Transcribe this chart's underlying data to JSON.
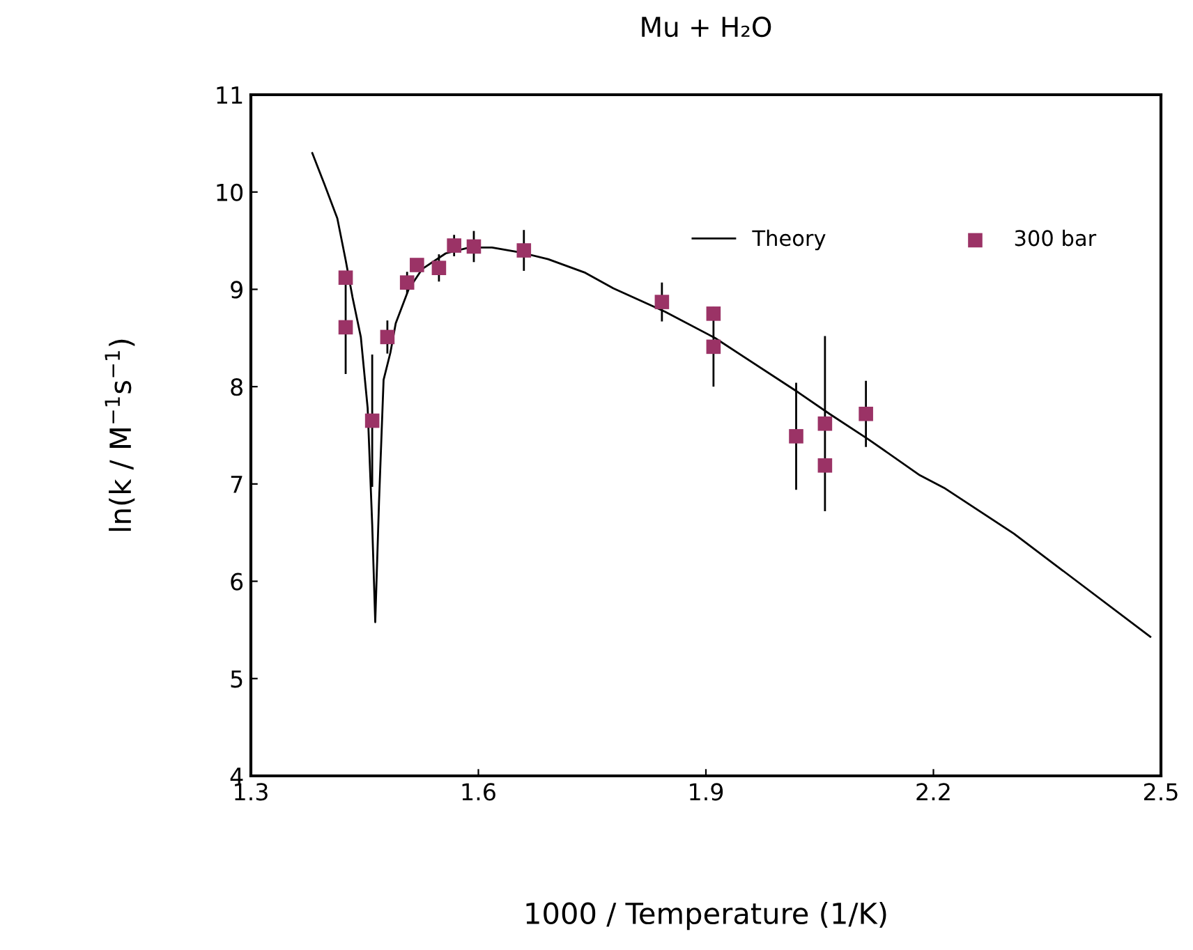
{
  "chart_data": {
    "type": "scatter",
    "title": "Mu + H₂O",
    "xlabel": "1000 / Temperature (1/K)",
    "ylabel": "ln(k / M$^{−1}$s$^{−1}$)",
    "xlim": [
      1.3,
      2.5
    ],
    "xticks": [
      1.3,
      1.6,
      1.9,
      2.2,
      2.5
    ],
    "ylim": [
      4,
      11
    ],
    "yticks": [
      4,
      5,
      6,
      7,
      8,
      9,
      10,
      11
    ],
    "grid": false,
    "legend": "top right",
    "series": [
      {
        "name": "Theory",
        "type": "line",
        "color": "#000000",
        "marker": "none",
        "line_style": "solid",
        "x": [
          1.381,
          1.397,
          1.414,
          1.425,
          1.434,
          1.445,
          1.454,
          1.46,
          1.464,
          1.469,
          1.475,
          1.484,
          1.491,
          1.508,
          1.526,
          1.557,
          1.588,
          1.618,
          1.655,
          1.692,
          1.741,
          1.778,
          1.846,
          1.912,
          2.022,
          2.063,
          2.114,
          2.182,
          2.214,
          2.306,
          2.486
        ],
        "values": [
          10.4,
          10.08,
          9.73,
          9.3,
          8.92,
          8.51,
          7.78,
          6.58,
          5.58,
          6.82,
          8.07,
          8.35,
          8.65,
          9.0,
          9.21,
          9.37,
          9.43,
          9.43,
          9.38,
          9.31,
          9.17,
          9.01,
          8.77,
          8.5,
          7.94,
          7.72,
          7.46,
          7.09,
          6.96,
          6.49,
          5.43
        ]
      },
      {
        "name": "300 bar",
        "color": "#9b3366",
        "marker": "square",
        "x": [
          1.425,
          1.425,
          1.46,
          1.48,
          1.506,
          1.519,
          1.548,
          1.568,
          1.594,
          1.66,
          1.842,
          1.91,
          1.91,
          2.019,
          2.057,
          2.057,
          2.111
        ],
        "values": [
          9.12,
          8.61,
          7.65,
          8.51,
          9.07,
          9.25,
          9.22,
          9.45,
          9.44,
          9.4,
          8.87,
          8.75,
          8.41,
          7.49,
          7.62,
          7.19,
          7.72
        ],
        "errors": [
          null,
          0.47,
          0.67,
          0.16,
          0.1,
          null,
          0.13,
          0.1,
          0.15,
          0.2,
          0.19,
          null,
          0.4,
          0.54,
          0.89,
          null,
          0.33
        ]
      }
    ]
  }
}
